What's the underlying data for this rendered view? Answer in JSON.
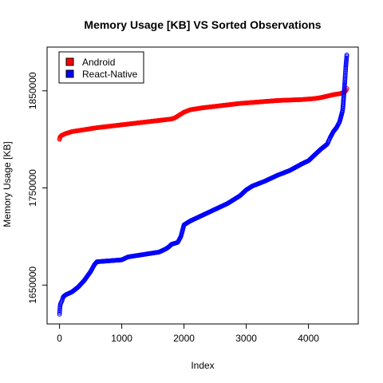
{
  "chart_data": {
    "type": "scatter",
    "title": "Memory Usage [KB]  VS  Sorted Observations",
    "xlabel": "Index",
    "ylabel": "Memory Usage [KB]",
    "xlim": [
      -200,
      4800
    ],
    "ylim": [
      1610000,
      1895000
    ],
    "xticks": [
      0,
      1000,
      2000,
      3000,
      4000
    ],
    "xtick_labels": [
      "0",
      "1000",
      "2000",
      "3000",
      "4000"
    ],
    "yticks": [
      1650000,
      1750000,
      1850000
    ],
    "ytick_labels": [
      "1650000",
      "1750000",
      "1850000"
    ],
    "legend": {
      "placement": "top-left",
      "entries": [
        {
          "label": "Android",
          "color": "#ff0000"
        },
        {
          "label": "React-Native",
          "color": "#0000ff"
        }
      ]
    },
    "series": [
      {
        "name": "Android",
        "color": "#ff0000",
        "n": 4620,
        "x": [
          0,
          5,
          30,
          100,
          200,
          400,
          600,
          800,
          1000,
          1200,
          1400,
          1600,
          1800,
          1850,
          1950,
          2000,
          2100,
          2300,
          2500,
          2700,
          2900,
          3100,
          3300,
          3500,
          3700,
          3900,
          4000,
          4100,
          4200,
          4300,
          4400,
          4500,
          4560,
          4600,
          4620
        ],
        "y": [
          1800000,
          1802000,
          1804000,
          1806000,
          1808000,
          1810000,
          1812000,
          1813500,
          1815000,
          1816500,
          1818000,
          1819500,
          1821000,
          1822000,
          1826000,
          1828000,
          1830500,
          1832500,
          1834000,
          1835500,
          1837000,
          1838000,
          1839000,
          1840000,
          1840500,
          1841000,
          1841500,
          1842000,
          1843000,
          1844500,
          1846000,
          1847000,
          1848000,
          1850000,
          1853000
        ]
      },
      {
        "name": "React-Native",
        "color": "#0000ff",
        "n": 4620,
        "x": [
          0,
          10,
          40,
          60,
          100,
          200,
          300,
          400,
          500,
          560,
          600,
          800,
          1000,
          1100,
          1200,
          1300,
          1400,
          1500,
          1600,
          1700,
          1750,
          1800,
          1850,
          1900,
          1950,
          2000,
          2100,
          2300,
          2500,
          2700,
          2900,
          3000,
          3100,
          3300,
          3500,
          3700,
          3900,
          4000,
          4100,
          4200,
          4300,
          4350,
          4400,
          4450,
          4500,
          4550,
          4580,
          4600,
          4620
        ],
        "y": [
          1620000,
          1630000,
          1634000,
          1638000,
          1640000,
          1643000,
          1648000,
          1655000,
          1664000,
          1671000,
          1674000,
          1675000,
          1676000,
          1679000,
          1680000,
          1681000,
          1682000,
          1683000,
          1684000,
          1687000,
          1689000,
          1692000,
          1693000,
          1694000,
          1700000,
          1712000,
          1716000,
          1722000,
          1728000,
          1734000,
          1742000,
          1748000,
          1752000,
          1757000,
          1763000,
          1768000,
          1775000,
          1778000,
          1784000,
          1790000,
          1795000,
          1802000,
          1808000,
          1812000,
          1818000,
          1830000,
          1855000,
          1875000,
          1890000
        ]
      }
    ]
  }
}
